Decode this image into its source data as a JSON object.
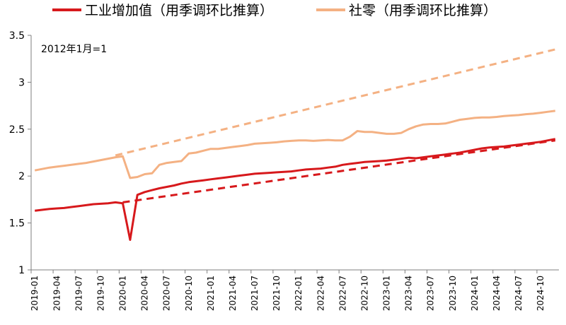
{
  "chart_data": {
    "type": "line",
    "note": "2012年1月=1",
    "x": [
      "2019-01",
      "2019-02",
      "2019-03",
      "2019-04",
      "2019-05",
      "2019-06",
      "2019-07",
      "2019-08",
      "2019-09",
      "2019-10",
      "2019-11",
      "2019-12",
      "2020-01",
      "2020-02",
      "2020-03",
      "2020-04",
      "2020-05",
      "2020-06",
      "2020-07",
      "2020-08",
      "2020-09",
      "2020-10",
      "2020-11",
      "2020-12",
      "2021-01",
      "2021-02",
      "2021-03",
      "2021-04",
      "2021-05",
      "2021-06",
      "2021-07",
      "2021-08",
      "2021-09",
      "2021-10",
      "2021-11",
      "2021-12",
      "2022-01",
      "2022-02",
      "2022-03",
      "2022-04",
      "2022-05",
      "2022-06",
      "2022-07",
      "2022-08",
      "2022-09",
      "2022-10",
      "2022-11",
      "2022-12",
      "2023-01",
      "2023-02",
      "2023-03",
      "2023-04",
      "2023-05",
      "2023-06",
      "2023-07",
      "2023-08",
      "2023-09",
      "2023-10",
      "2023-11",
      "2023-12",
      "2024-01",
      "2024-02",
      "2024-03",
      "2024-04",
      "2024-05",
      "2024-06",
      "2024-07",
      "2024-08",
      "2024-09",
      "2024-10",
      "2024-11",
      "2024-12"
    ],
    "xtick_labels": [
      "2019-01",
      "2019-04",
      "2019-07",
      "2019-10",
      "2020-01",
      "2020-04",
      "2020-07",
      "2020-10",
      "2021-01",
      "2021-04",
      "2021-07",
      "2021-10",
      "2022-01",
      "2022-04",
      "2022-07",
      "2022-10",
      "2023-01",
      "2023-04",
      "2023-07",
      "2023-10",
      "2024-01",
      "2024-04",
      "2024-07",
      "2024-10"
    ],
    "ylim": [
      1,
      3.5
    ],
    "yticks": [
      1,
      1.5,
      2,
      2.5,
      3,
      3.5
    ],
    "ytick_labels": [
      "1",
      "1.5",
      "2",
      "2.5",
      "3",
      "3.5"
    ],
    "series": [
      {
        "name": "工业增加值（用季调环比推算）",
        "color": "#d7191c",
        "style": "solid",
        "values": [
          1.63,
          1.64,
          1.65,
          1.655,
          1.66,
          1.67,
          1.68,
          1.69,
          1.7,
          1.705,
          1.71,
          1.72,
          1.71,
          1.32,
          1.8,
          1.83,
          1.85,
          1.87,
          1.885,
          1.9,
          1.92,
          1.935,
          1.945,
          1.955,
          1.965,
          1.975,
          1.985,
          1.995,
          2.005,
          2.015,
          2.025,
          2.03,
          2.035,
          2.04,
          2.045,
          2.05,
          2.06,
          2.07,
          2.075,
          2.08,
          2.09,
          2.1,
          2.12,
          2.13,
          2.14,
          2.15,
          2.155,
          2.16,
          2.165,
          2.175,
          2.185,
          2.195,
          2.19,
          2.2,
          2.21,
          2.22,
          2.23,
          2.24,
          2.25,
          2.265,
          2.28,
          2.295,
          2.305,
          2.31,
          2.315,
          2.325,
          2.335,
          2.345,
          2.355,
          2.365,
          2.38,
          2.395
        ]
      },
      {
        "name": "社零（用季调环比推算）",
        "color": "#f4b183",
        "style": "solid",
        "values": [
          2.06,
          2.075,
          2.09,
          2.1,
          2.11,
          2.12,
          2.13,
          2.14,
          2.155,
          2.17,
          2.185,
          2.2,
          2.21,
          1.98,
          1.99,
          2.02,
          2.03,
          2.12,
          2.14,
          2.15,
          2.16,
          2.24,
          2.25,
          2.27,
          2.29,
          2.29,
          2.3,
          2.31,
          2.32,
          2.33,
          2.345,
          2.35,
          2.355,
          2.36,
          2.37,
          2.375,
          2.38,
          2.38,
          2.375,
          2.38,
          2.385,
          2.38,
          2.38,
          2.42,
          2.48,
          2.47,
          2.47,
          2.46,
          2.45,
          2.45,
          2.46,
          2.5,
          2.53,
          2.55,
          2.555,
          2.555,
          2.56,
          2.58,
          2.6,
          2.61,
          2.62,
          2.625,
          2.625,
          2.63,
          2.64,
          2.645,
          2.65,
          2.66,
          2.665,
          2.675,
          2.685,
          2.695
        ]
      }
    ],
    "trend_lines": [
      {
        "color": "#d7191c",
        "style": "dashed",
        "x_start": "2020-01",
        "y_start": 1.72,
        "x_end": "2024-12",
        "y_end": 2.38
      },
      {
        "color": "#f4b183",
        "style": "dashed",
        "x_start": "2019-12",
        "y_start": 2.22,
        "x_end": "2024-12",
        "y_end": 3.35
      }
    ]
  }
}
